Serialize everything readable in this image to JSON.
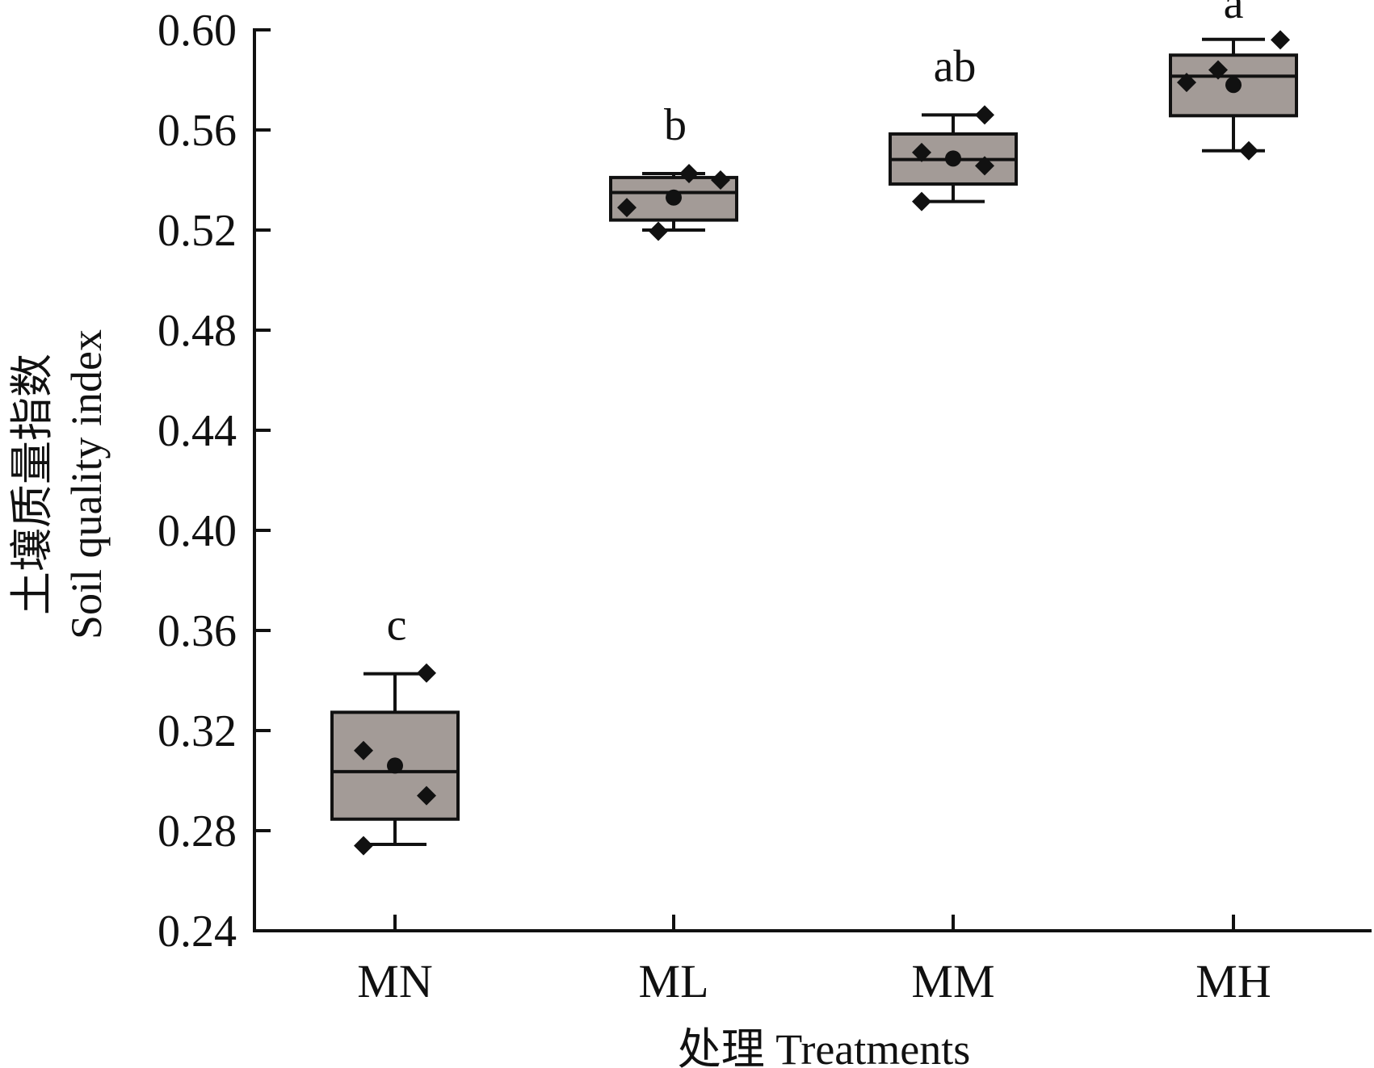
{
  "chart_data": {
    "type": "box",
    "xlabel": "处理 Treatments",
    "ylabel_cn": "土壤质量指数",
    "ylabel": "Soil quality index",
    "ylim": [
      0.24,
      0.6
    ],
    "yticks": [
      "0.24",
      "0.28",
      "0.32",
      "0.36",
      "0.40",
      "0.44",
      "0.48",
      "0.52",
      "0.56",
      "0.60"
    ],
    "grid": false,
    "box_fill": "#a39b97",
    "categories": [
      "MN",
      "ML",
      "MM",
      "MH"
    ],
    "boxes": [
      {
        "category": "MN",
        "whisker_low": 0.2745,
        "q1": 0.2846,
        "median": 0.3036,
        "q3": 0.3273,
        "whisker_high": 0.3427,
        "mean": 0.306,
        "points": [
          0.343,
          0.312,
          0.294,
          0.274
        ],
        "letter": "c"
      },
      {
        "category": "ML",
        "whisker_low": 0.52,
        "q1": 0.524,
        "median": 0.535,
        "q3": 0.541,
        "whisker_high": 0.5426,
        "mean": 0.533,
        "points": [
          0.529,
          0.5426,
          0.54,
          0.5195
        ],
        "letter": "b"
      },
      {
        "category": "MM",
        "whisker_low": 0.5314,
        "q1": 0.5384,
        "median": 0.5482,
        "q3": 0.5584,
        "whisker_high": 0.566,
        "mean": 0.5486,
        "points": [
          0.566,
          0.551,
          0.5457,
          0.5314
        ],
        "letter": "ab"
      },
      {
        "category": "MH",
        "whisker_low": 0.5517,
        "q1": 0.5657,
        "median": 0.5815,
        "q3": 0.5899,
        "whisker_high": 0.5962,
        "mean": 0.578,
        "points": [
          0.596,
          0.579,
          0.584,
          0.5517
        ],
        "letter": "a"
      }
    ]
  }
}
